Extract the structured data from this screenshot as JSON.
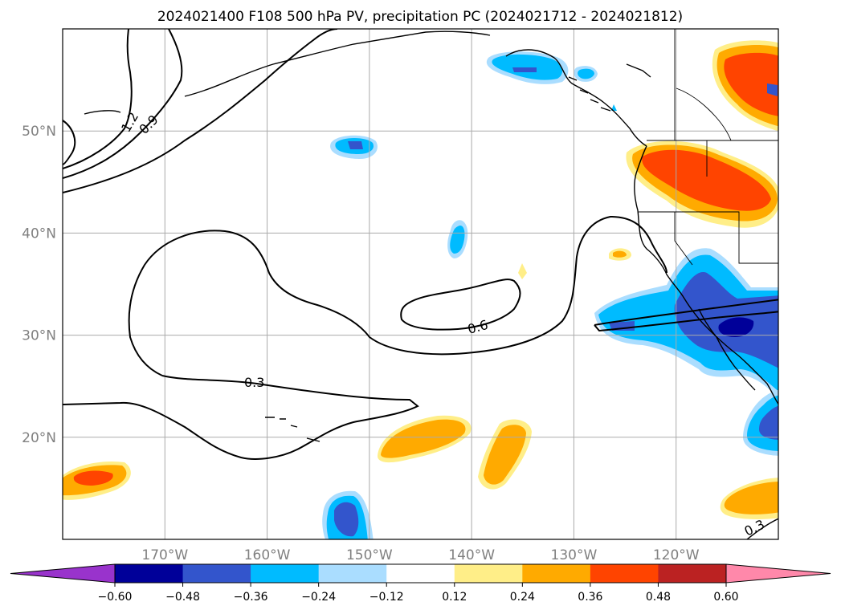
{
  "title": "2024021400 F108 500 hPa PV, precipitation PC (2024021712 - 2024021812)",
  "chart_data": {
    "type": "map",
    "title": "2024021400 F108 500 hPa PV, precipitation PC (2024021712 - 2024021812)",
    "xlabel": "",
    "ylabel": "",
    "lon_range": [
      -180,
      -110
    ],
    "lat_range": [
      10,
      60
    ],
    "lon_ticks": [
      -170,
      -160,
      -150,
      -140,
      -130,
      -120
    ],
    "lon_tick_labels": [
      "170°W",
      "160°W",
      "150°W",
      "140°W",
      "130°W",
      "120°W"
    ],
    "lat_ticks": [
      20,
      30,
      40,
      50
    ],
    "lat_tick_labels": [
      "20°N",
      "30°N",
      "40°N",
      "50°N"
    ],
    "grid": true,
    "pv_contour_labels": [
      "1.2",
      "0.9",
      "0.6",
      "0.3",
      "0.3"
    ],
    "colorbar": {
      "orientation": "horizontal",
      "extend": "both",
      "levels": [
        -0.6,
        -0.48,
        -0.36,
        -0.24,
        -0.12,
        0.12,
        0.24,
        0.36,
        0.48,
        0.6
      ],
      "tick_labels": [
        "−0.60",
        "−0.48",
        "−0.36",
        "−0.24",
        "−0.12",
        "0.12",
        "0.24",
        "0.36",
        "0.48",
        "0.60"
      ],
      "colors": [
        "#9933cc",
        "#000099",
        "#3355cc",
        "#00bbff",
        "#aaddff",
        "#ffffff",
        "#ffee88",
        "#ffaa00",
        "#ff4400",
        "#bb2222",
        "#ff88aa"
      ]
    }
  }
}
